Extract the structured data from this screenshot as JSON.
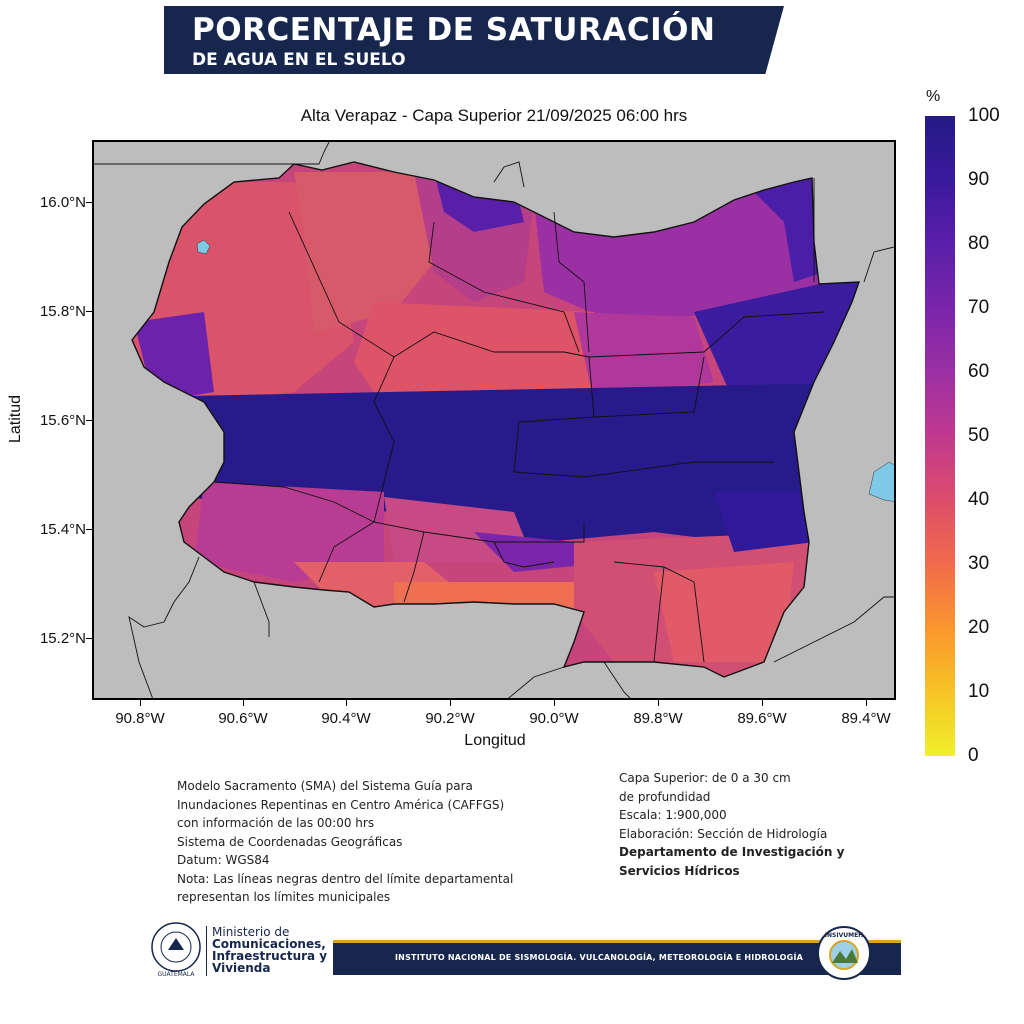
{
  "banner": {
    "line1": "PORCENTAJE DE SATURACIÓN",
    "line2": "DE AGUA EN EL SUELO"
  },
  "map": {
    "subtitle": "Alta Verapaz - Capa Superior 21/09/2025 06:00 hrs",
    "y_axis_label": "Latitud",
    "x_axis_label": "Longitud",
    "lat_ticks": [
      "16.0°N",
      "15.8°N",
      "15.6°N",
      "15.4°N",
      "15.2°N"
    ],
    "lon_ticks": [
      "90.8°W",
      "90.6°W",
      "90.4°W",
      "90.2°W",
      "90.0°W",
      "89.8°W",
      "89.6°W",
      "89.4°W"
    ],
    "colors": {
      "background_land": "#bdbdbd",
      "water": "#7ec8e8",
      "border": "#000000"
    }
  },
  "colorbar": {
    "unit": "%",
    "labels": [
      "100",
      "90",
      "80",
      "70",
      "60",
      "50",
      "40",
      "30",
      "20",
      "10",
      "0"
    ],
    "colors": [
      "#241a85",
      "#5a1fa8",
      "#9b30a4",
      "#c0398e",
      "#dd4d6b",
      "#f16b4a",
      "#fa962d",
      "#f6c425",
      "#f0f02a"
    ]
  },
  "notes_left": [
    "Modelo Sacramento (SMA) del Sistema Guía para",
    "Inundaciones Repentinas en Centro América (CAFFGS)",
    "con información de las 00:00 hrs",
    "Sistema de Coordenadas Geográficas",
    "Datum: WGS84",
    "Nota: Las líneas negras dentro del límite departamental",
    "representan los límites municipales"
  ],
  "notes_right": [
    "Capa Superior: de 0 a 30 cm",
    "de profundidad",
    "Escala: 1:900,000",
    "Elaboración: Sección de Hidrología"
  ],
  "notes_right_bold": [
    "Departamento de Investigación y",
    "Servicios Hídricos"
  ],
  "footer": {
    "ministry_line1": "Ministerio de",
    "ministry_line2": "Comunicaciones,",
    "ministry_line3": "Infraestructura y",
    "ministry_line4": "Vivienda",
    "institute": "INSTITUTO NACIONAL DE SISMOLOGÍA. VULCANOLOGÍA, METEOROLOGÍA E HIDROLOGÍA",
    "seal_text": "GUATEMALA",
    "logo_text": "INSIVUMEH"
  }
}
